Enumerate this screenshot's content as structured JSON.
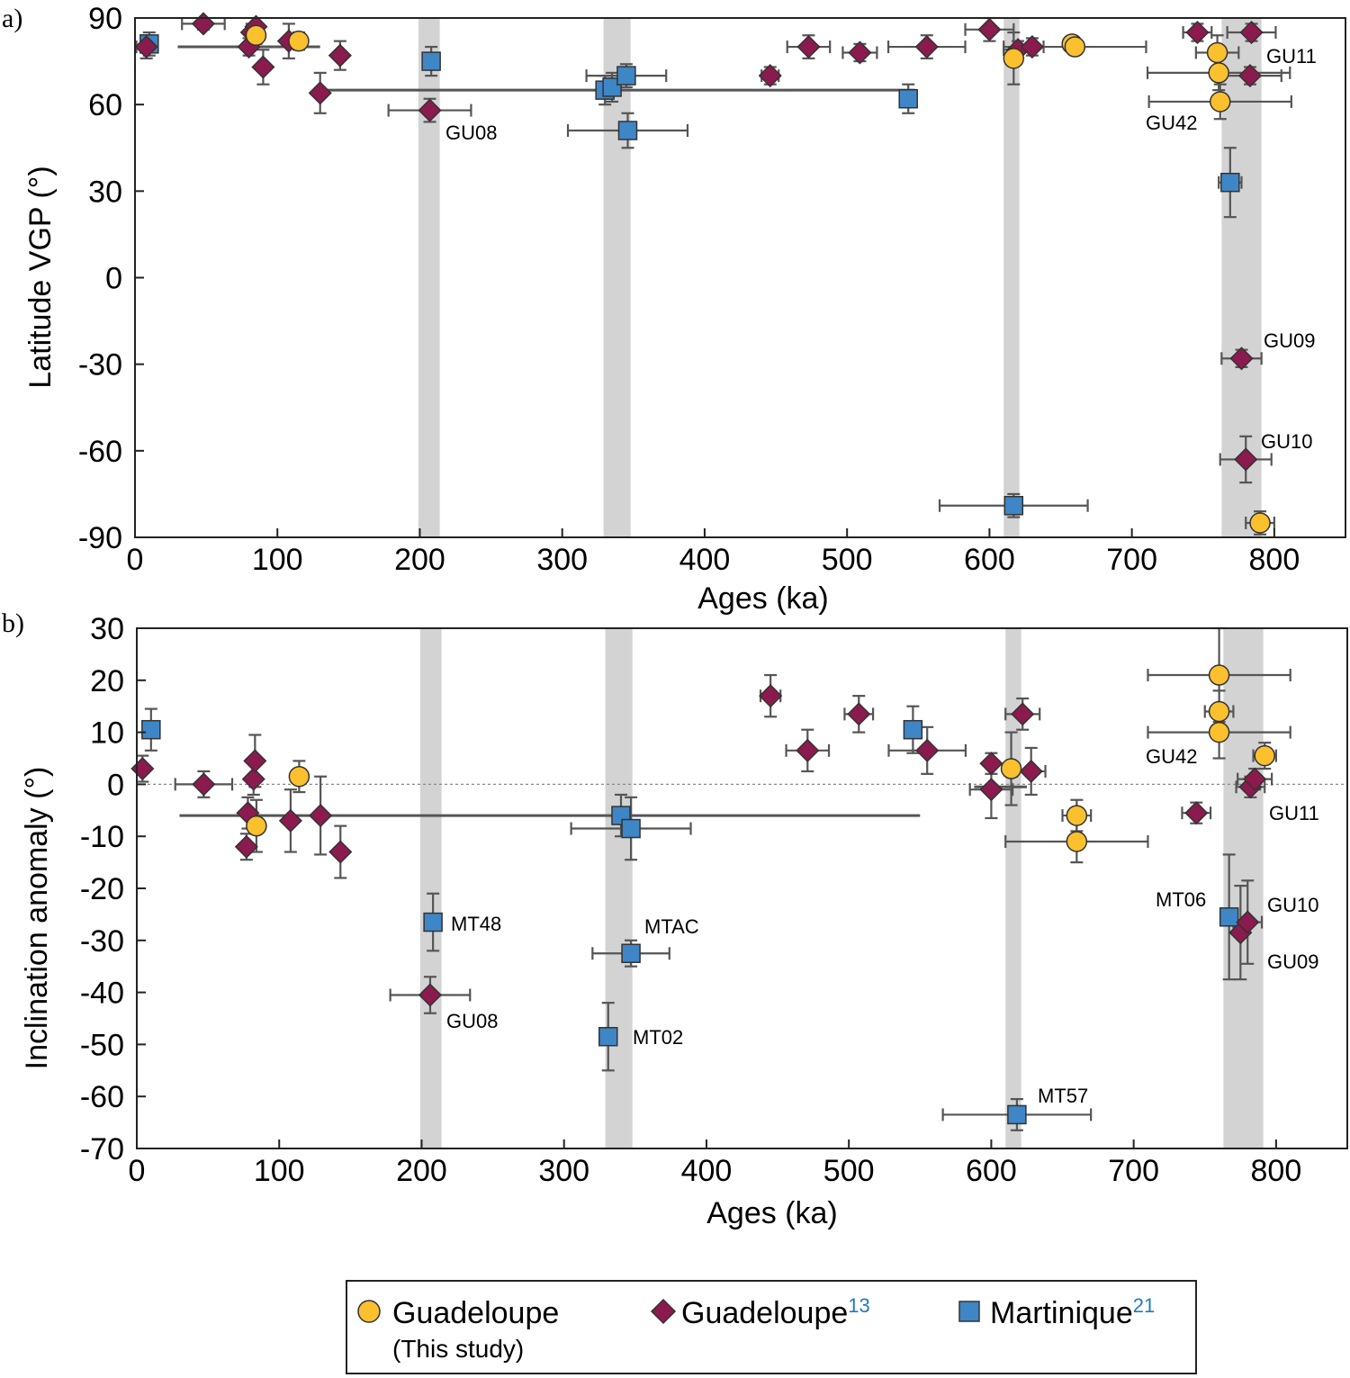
{
  "colors": {
    "guad_this": "#fbc02d",
    "guad13": "#8b1a4e",
    "martinique": "#3e86c6",
    "errorbar": "#555555",
    "band": "#d3d3d3",
    "ref": "#1f7bc0"
  },
  "chart_data": [
    {
      "id": "a",
      "type": "scatter",
      "panel_label": "a)",
      "xlabel": "Ages (ka)",
      "ylabel": "Latitude VGP (°)",
      "xlim": [
        0,
        850
      ],
      "ylim": [
        -90,
        90
      ],
      "xticks": [
        0,
        100,
        200,
        300,
        400,
        500,
        600,
        700,
        800
      ],
      "xtick_labels": [
        "0",
        "100",
        "200",
        "300",
        "400",
        "500",
        "600",
        "700",
        "800"
      ],
      "yticks": [
        90,
        60,
        30,
        0,
        -30,
        -60,
        -90
      ],
      "ytick_labels": [
        "90",
        "60",
        "30",
        "0",
        "-30",
        "-60",
        "-90"
      ],
      "zero_line": false,
      "bands": [
        [
          199,
          214
        ],
        [
          329,
          348
        ],
        [
          610,
          621
        ],
        [
          763,
          791
        ]
      ],
      "series": [
        {
          "name": "Martinique",
          "marker": "square",
          "points": [
            {
              "x": 10,
              "y": 81,
              "xerr": 0,
              "yerr": 4
            },
            {
              "x": 208,
              "y": 75,
              "xerr": 0,
              "yerr": 5
            },
            {
              "x": 330,
              "y": 65,
              "xerr": 0,
              "yerr": 5
            },
            {
              "x": 335,
              "y": 66,
              "xerr": 0,
              "yerr": 5
            },
            {
              "x": 345,
              "y": 70,
              "xerr": 28,
              "yerr": 4
            },
            {
              "x": 346,
              "y": 51,
              "xerr": 42,
              "yerr": 6
            },
            {
              "x": 543,
              "y": 62,
              "xerr": 0,
              "yerr": 5
            },
            {
              "x": 617,
              "y": -79,
              "xerr": 52,
              "yerr": 4
            },
            {
              "x": 769,
              "y": 33,
              "xerr": 8,
              "yerr": 12
            }
          ]
        },
        {
          "name": "Guadeloupe13",
          "marker": "diamond",
          "points": [
            {
              "x": 8,
              "y": 80,
              "xerr": 7,
              "yerr": 4
            },
            {
              "x": 48,
              "y": 88,
              "xerr": 15,
              "yerr": 2
            },
            {
              "x": 80,
              "y": 80,
              "xerr": 0,
              "yerr": 3
            },
            {
              "x": 82,
              "y": 85,
              "xerr": 0,
              "yerr": 3
            },
            {
              "x": 85,
              "y": 87,
              "xerr": 0,
              "yerr": 3
            },
            {
              "x": 90,
              "y": 73,
              "xerr": 0,
              "yerr": 6
            },
            {
              "x": 108,
              "y": 82,
              "xerr": 0,
              "yerr": 6
            },
            {
              "x": 130,
              "y": 64,
              "xerr": 0,
              "yerr": 7
            },
            {
              "x": 144,
              "y": 77,
              "xerr": 0,
              "yerr": 5
            },
            {
              "x": 207,
              "y": 58,
              "xerr": 29,
              "yerr": 4
            },
            {
              "x": 446,
              "y": 70,
              "xerr": 6,
              "yerr": 3
            },
            {
              "x": 473,
              "y": 80,
              "xerr": 15,
              "yerr": 4
            },
            {
              "x": 509,
              "y": 78,
              "xerr": 12,
              "yerr": 3
            },
            {
              "x": 556,
              "y": 80,
              "xerr": 27,
              "yerr": 4
            },
            {
              "x": 600,
              "y": 86,
              "xerr": 17,
              "yerr": 4
            },
            {
              "x": 620,
              "y": 79,
              "xerr": 10,
              "yerr": 3
            },
            {
              "x": 630,
              "y": 80,
              "xerr": 8,
              "yerr": 3
            },
            {
              "x": 746,
              "y": 85,
              "xerr": 10,
              "yerr": 3
            },
            {
              "x": 777,
              "y": -28,
              "xerr": 14,
              "yerr": 3
            },
            {
              "x": 780,
              "y": -63,
              "xerr": 18,
              "yerr": 8
            },
            {
              "x": 783,
              "y": 70,
              "xerr": 22,
              "yerr": 3
            },
            {
              "x": 784,
              "y": 85,
              "xerr": 17,
              "yerr": 3
            }
          ]
        },
        {
          "name": "Guadeloupe (This study)",
          "marker": "circle",
          "points": [
            {
              "x": 85,
              "y": 84,
              "xerr": 0,
              "yerr": 3
            },
            {
              "x": 115,
              "y": 82,
              "xerr": 0,
              "yerr": 3
            },
            {
              "x": 617,
              "y": 76,
              "xerr": 0,
              "yerr": 9
            },
            {
              "x": 658,
              "y": 81,
              "xerr": 0,
              "yerr": 2
            },
            {
              "x": 660,
              "y": 80,
              "xerr": 50,
              "yerr": 2
            },
            {
              "x": 760,
              "y": 78,
              "xerr": 15,
              "yerr": 6
            },
            {
              "x": 761,
              "y": 71,
              "xerr": 50,
              "yerr": 6
            },
            {
              "x": 762,
              "y": 61,
              "xerr": 50,
              "yerr": 6
            },
            {
              "x": 790,
              "y": -85,
              "xerr": 10,
              "yerr": 4
            }
          ]
        }
      ],
      "span_bars": [
        {
          "x1": 30,
          "x2": 130,
          "y": 80
        },
        {
          "x1": 130,
          "x2": 548,
          "y": 65
        }
      ],
      "annotations": [
        "GU08",
        "GU11",
        "GU42",
        "GU09",
        "GU10"
      ]
    },
    {
      "id": "b",
      "type": "scatter",
      "panel_label": "b)",
      "xlabel": "Ages (ka)",
      "ylabel": "Inclination anomaly (°)",
      "xlim": [
        0,
        850
      ],
      "ylim": [
        -70,
        30
      ],
      "xticks": [
        0,
        100,
        200,
        300,
        400,
        500,
        600,
        700,
        800
      ],
      "xtick_labels": [
        "0",
        "100",
        "200",
        "300",
        "400",
        "500",
        "600",
        "700",
        "800"
      ],
      "yticks": [
        30,
        20,
        10,
        0,
        -10,
        -20,
        -30,
        -40,
        -50,
        -60,
        -70
      ],
      "ytick_labels": [
        "30",
        "20",
        "10",
        "0",
        "-10",
        "-20",
        "-30",
        "-40",
        "-50",
        "-60",
        "-70"
      ],
      "zero_line": true,
      "bands": [
        [
          199,
          214
        ],
        [
          329,
          348
        ],
        [
          610,
          621
        ],
        [
          763,
          791
        ]
      ],
      "series": [
        {
          "name": "Martinique",
          "marker": "square",
          "points": [
            {
              "x": 10,
              "y": 10.5,
              "xerr": 0,
              "yerr": 4
            },
            {
              "x": 208,
              "y": -26.5,
              "xerr": 0,
              "yerr": 5.5
            },
            {
              "x": 331,
              "y": -48.5,
              "xerr": 0,
              "yerr": 6.5
            },
            {
              "x": 340,
              "y": -6,
              "xerr": 0,
              "yerr": 4
            },
            {
              "x": 347,
              "y": -8.5,
              "xerr": 42,
              "yerr": 6
            },
            {
              "x": 347,
              "y": -32.5,
              "xerr": 27,
              "yerr": 2.5
            },
            {
              "x": 545,
              "y": 10.5,
              "xerr": 0,
              "yerr": 4.5
            },
            {
              "x": 618,
              "y": -63.5,
              "xerr": 52,
              "yerr": 3
            },
            {
              "x": 767,
              "y": -25.5,
              "xerr": 0,
              "yerr": 12
            }
          ]
        },
        {
          "name": "Guadeloupe13",
          "marker": "diamond",
          "points": [
            {
              "x": 4,
              "y": 3,
              "xerr": 0,
              "yerr": 2.5
            },
            {
              "x": 47,
              "y": 0,
              "xerr": 20,
              "yerr": 2.5
            },
            {
              "x": 77,
              "y": -12,
              "xerr": 0,
              "yerr": 2.5
            },
            {
              "x": 78,
              "y": -5.5,
              "xerr": 0,
              "yerr": 3
            },
            {
              "x": 82,
              "y": 1,
              "xerr": 0,
              "yerr": 3
            },
            {
              "x": 83,
              "y": 4.5,
              "xerr": 0,
              "yerr": 5
            },
            {
              "x": 108,
              "y": -7,
              "xerr": 0,
              "yerr": 6
            },
            {
              "x": 129,
              "y": -6,
              "xerr": 0,
              "yerr": 7.5
            },
            {
              "x": 143,
              "y": -13,
              "xerr": 0,
              "yerr": 5
            },
            {
              "x": 206,
              "y": -40.5,
              "xerr": 28,
              "yerr": 3.5
            },
            {
              "x": 445,
              "y": 17,
              "xerr": 7,
              "yerr": 4
            },
            {
              "x": 471,
              "y": 6.5,
              "xerr": 15,
              "yerr": 4
            },
            {
              "x": 507,
              "y": 13.5,
              "xerr": 10,
              "yerr": 3.5
            },
            {
              "x": 555,
              "y": 6.5,
              "xerr": 27,
              "yerr": 4.5
            },
            {
              "x": 600,
              "y": 4,
              "xerr": 0,
              "yerr": 2
            },
            {
              "x": 600,
              "y": -1,
              "xerr": 15,
              "yerr": 5.5
            },
            {
              "x": 622,
              "y": 13.5,
              "xerr": 12,
              "yerr": 3
            },
            {
              "x": 628,
              "y": 2.5,
              "xerr": 10,
              "yerr": 4.5
            },
            {
              "x": 744,
              "y": -5.5,
              "xerr": 10,
              "yerr": 2
            },
            {
              "x": 775,
              "y": -28.5,
              "xerr": 0,
              "yerr": 9
            },
            {
              "x": 780,
              "y": -26.5,
              "xerr": 10,
              "yerr": 8
            },
            {
              "x": 782,
              "y": -0.5,
              "xerr": 10,
              "yerr": 2
            },
            {
              "x": 785,
              "y": 1,
              "xerr": 12,
              "yerr": 2
            }
          ]
        },
        {
          "name": "Guadeloupe (This study)",
          "marker": "circle",
          "points": [
            {
              "x": 84,
              "y": -8,
              "xerr": 0,
              "yerr": 5
            },
            {
              "x": 114,
              "y": 1.5,
              "xerr": 0,
              "yerr": 3
            },
            {
              "x": 614,
              "y": 3,
              "xerr": 0,
              "yerr": 7
            },
            {
              "x": 660,
              "y": -6,
              "xerr": 10,
              "yerr": 3
            },
            {
              "x": 660,
              "y": -11,
              "xerr": 50,
              "yerr": 4
            },
            {
              "x": 760,
              "y": 21,
              "xerr": 50,
              "yerr": 9
            },
            {
              "x": 760,
              "y": 14,
              "xerr": 10,
              "yerr": 4
            },
            {
              "x": 760,
              "y": 10,
              "xerr": 50,
              "yerr": 5
            },
            {
              "x": 792,
              "y": 5.5,
              "xerr": 8,
              "yerr": 2.5
            }
          ]
        }
      ],
      "span_bars": [
        {
          "x1": 30,
          "x2": 550,
          "y": -6
        },
        {
          "x1": 588,
          "x2": 625,
          "y": -0.5
        }
      ],
      "annotations": [
        "MT48",
        "MTAC",
        "GU08",
        "MT02",
        "MT57",
        "GU42",
        "GU11",
        "MT06",
        "GU10",
        "GU09"
      ]
    }
  ],
  "annotations_a": {
    "GU08": "GU08",
    "GU11": "GU11",
    "GU42": "GU42",
    "GU09": "GU09",
    "GU10": "GU10"
  },
  "annotations_b": {
    "MT48": "MT48",
    "MTAC": "MTAC",
    "GU08": "GU08",
    "MT02": "MT02",
    "MT57": "MT57",
    "GU42": "GU42",
    "GU11": "GU11",
    "MT06": "MT06",
    "GU10": "GU10",
    "GU09": "GU09"
  },
  "legend": {
    "items": [
      {
        "name": "Guadeloupe",
        "sub": "(This study)",
        "ref": ""
      },
      {
        "name": "Guadeloupe",
        "sub": "",
        "ref": "13"
      },
      {
        "name": "Martinique",
        "sub": "",
        "ref": "21"
      }
    ]
  }
}
